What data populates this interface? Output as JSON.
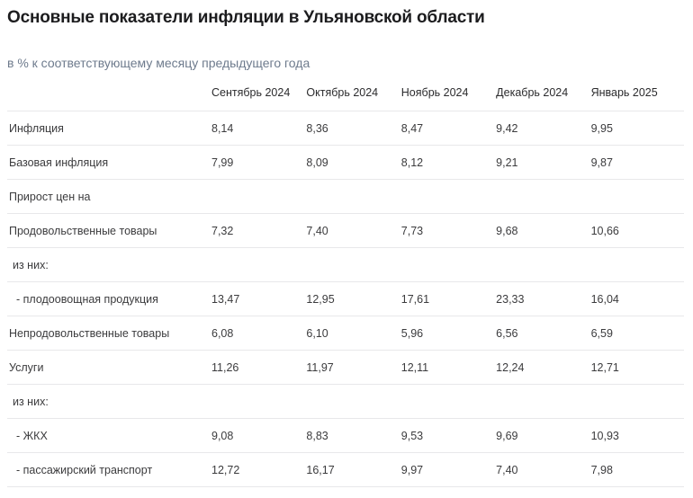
{
  "page": {
    "title": "Основные показатели инфляции в Ульяновской области",
    "subtitle": "в % к соответствующему месяцу предыдущего года"
  },
  "table": {
    "columns": [
      "Сентябрь 2024",
      "Октябрь 2024",
      "Ноябрь 2024",
      "Декабрь 2024",
      "Январь 2025"
    ],
    "rows": [
      {
        "label": "Инфляция",
        "indent": 0,
        "values": [
          "8,14",
          "8,36",
          "8,47",
          "9,42",
          "9,95"
        ]
      },
      {
        "label": "Базовая инфляция",
        "indent": 0,
        "values": [
          "7,99",
          "8,09",
          "8,12",
          "9,21",
          "9,87"
        ]
      },
      {
        "label": "Прирост цен на",
        "indent": 0,
        "values": []
      },
      {
        "label": "Продовольственные товары",
        "indent": 0,
        "values": [
          "7,32",
          "7,40",
          "7,73",
          "9,68",
          "10,66"
        ]
      },
      {
        "label": "из них:",
        "indent": 1,
        "values": []
      },
      {
        "label": "- плодоовощная продукция",
        "indent": 2,
        "values": [
          "13,47",
          "12,95",
          "17,61",
          "23,33",
          "16,04"
        ]
      },
      {
        "label": "Непродовольственные товары",
        "indent": 0,
        "values": [
          "6,08",
          "6,10",
          "5,96",
          "6,56",
          "6,59"
        ]
      },
      {
        "label": "Услуги",
        "indent": 0,
        "values": [
          "11,26",
          "11,97",
          "12,11",
          "12,24",
          "12,71"
        ]
      },
      {
        "label": "из них:",
        "indent": 1,
        "values": []
      },
      {
        "label": "- ЖКХ",
        "indent": 2,
        "values": [
          "9,08",
          "8,83",
          "9,53",
          "9,69",
          "10,93"
        ]
      },
      {
        "label": "- пассажирский транспорт",
        "indent": 2,
        "values": [
          "12,72",
          "16,17",
          "9,97",
          "7,40",
          "7,98"
        ]
      }
    ]
  },
  "chart_data": {
    "type": "table",
    "title": "Основные показатели инфляции в Ульяновской области",
    "subtitle": "в % к соответствующему месяцу предыдущего года",
    "columns": [
      "Сентябрь 2024",
      "Октябрь 2024",
      "Ноябрь 2024",
      "Декабрь 2024",
      "Январь 2025"
    ],
    "rows": [
      {
        "label": "Инфляция",
        "values": [
          8.14,
          8.36,
          8.47,
          9.42,
          9.95
        ]
      },
      {
        "label": "Базовая инфляция",
        "values": [
          7.99,
          8.09,
          8.12,
          9.21,
          9.87
        ]
      },
      {
        "label": "Прирост цен на",
        "values": []
      },
      {
        "label": "Продовольственные товары",
        "values": [
          7.32,
          7.4,
          7.73,
          9.68,
          10.66
        ]
      },
      {
        "label": "из них:",
        "values": []
      },
      {
        "label": "- плодоовощная продукция",
        "values": [
          13.47,
          12.95,
          17.61,
          23.33,
          16.04
        ]
      },
      {
        "label": "Непродовольственные товары",
        "values": [
          6.08,
          6.1,
          5.96,
          6.56,
          6.59
        ]
      },
      {
        "label": "Услуги",
        "values": [
          11.26,
          11.97,
          12.11,
          12.24,
          12.71
        ]
      },
      {
        "label": "из них:",
        "values": []
      },
      {
        "label": "- ЖКХ",
        "values": [
          9.08,
          8.83,
          9.53,
          9.69,
          10.93
        ]
      },
      {
        "label": "- пассажирский транспорт",
        "values": [
          12.72,
          16.17,
          9.97,
          7.4,
          7.98
        ]
      }
    ]
  },
  "colors": {
    "title": "#1c1c1e",
    "subtitle": "#6e7b8d",
    "header_text": "#2b2b2d",
    "cell_text": "#3b3b3d",
    "divider": "#e8e8ea",
    "background": "#ffffff"
  }
}
